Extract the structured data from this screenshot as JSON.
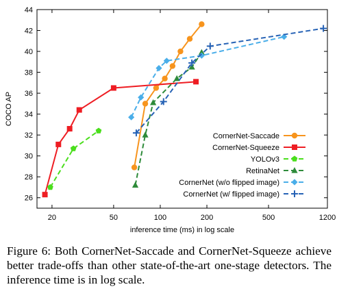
{
  "caption": "Figure 6: Both CornerNet-Saccade and CornerNet-Squeeze achieve better trade-offs than other state-of-the-art one-stage detectors. The inference time is in log scale.",
  "chart_data": {
    "type": "line",
    "title": "",
    "xlabel": "inference time (ms) in log scale",
    "ylabel": "COCO AP",
    "x_scale": "log",
    "xlim": [
      16,
      1200
    ],
    "ylim": [
      25,
      44
    ],
    "x_ticks": [
      20,
      50,
      100,
      200,
      500,
      1200
    ],
    "y_ticks": [
      26,
      28,
      30,
      32,
      34,
      36,
      38,
      40,
      42,
      44
    ],
    "grid": false,
    "legend_position": "bottom-right",
    "series": [
      {
        "name": "CornerNet-Saccade",
        "color": "#f7941d",
        "line_style": "solid",
        "marker": "circle",
        "x": [
          68,
          80,
          94,
          107,
          120,
          135,
          155,
          185
        ],
        "y": [
          28.9,
          35.0,
          36.5,
          37.4,
          38.6,
          40.0,
          41.2,
          42.6
        ]
      },
      {
        "name": "CornerNet-Squeeze",
        "color": "#ee1d23",
        "line_style": "solid",
        "marker": "square",
        "x": [
          18,
          22,
          26,
          30,
          50,
          170
        ],
        "y": [
          26.3,
          31.1,
          32.6,
          34.4,
          36.5,
          37.1
        ]
      },
      {
        "name": "YOLOv3",
        "color": "#4ade1c",
        "line_style": "dashed",
        "marker": "pentagon",
        "x": [
          19.5,
          27.5,
          40
        ],
        "y": [
          27.0,
          30.7,
          32.4
        ]
      },
      {
        "name": "RetinaNet",
        "color": "#2e8b3a",
        "line_style": "dashed",
        "marker": "triangle",
        "x": [
          69,
          80,
          90,
          128,
          160,
          185
        ],
        "y": [
          27.2,
          32.0,
          35.1,
          37.4,
          38.5,
          39.9
        ]
      },
      {
        "name": "CornerNet (w/o flipped image)",
        "color": "#4aaee9",
        "line_style": "dashed",
        "marker": "diamond",
        "x": [
          65,
          75,
          98,
          110,
          185,
          630
        ],
        "y": [
          33.7,
          35.6,
          38.4,
          39.1,
          39.6,
          41.4
        ]
      },
      {
        "name": "CornerNet (w/ flipped image)",
        "color": "#2662b5",
        "line_style": "dashed",
        "marker": "plus",
        "x": [
          70,
          105,
          160,
          210,
          1130
        ],
        "y": [
          32.2,
          35.2,
          38.9,
          40.5,
          42.2
        ]
      }
    ]
  }
}
